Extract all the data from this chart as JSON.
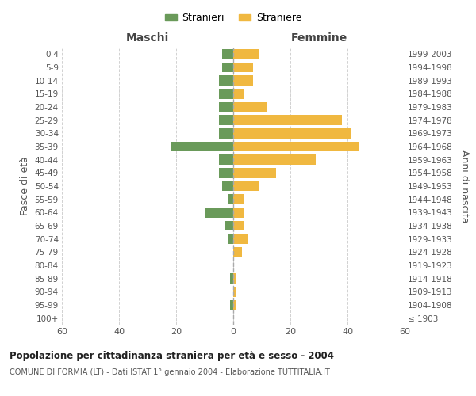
{
  "age_groups": [
    "100+",
    "95-99",
    "90-94",
    "85-89",
    "80-84",
    "75-79",
    "70-74",
    "65-69",
    "60-64",
    "55-59",
    "50-54",
    "45-49",
    "40-44",
    "35-39",
    "30-34",
    "25-29",
    "20-24",
    "15-19",
    "10-14",
    "5-9",
    "0-4"
  ],
  "birth_years": [
    "≤ 1903",
    "1904-1908",
    "1909-1913",
    "1914-1918",
    "1919-1923",
    "1924-1928",
    "1929-1933",
    "1934-1938",
    "1939-1943",
    "1944-1948",
    "1949-1953",
    "1954-1958",
    "1959-1963",
    "1964-1968",
    "1969-1973",
    "1974-1978",
    "1979-1983",
    "1984-1988",
    "1989-1993",
    "1994-1998",
    "1999-2003"
  ],
  "maschi": [
    0,
    1,
    0,
    1,
    0,
    0,
    2,
    3,
    10,
    2,
    4,
    5,
    5,
    22,
    5,
    5,
    5,
    5,
    5,
    4,
    4
  ],
  "femmine": [
    0,
    1,
    1,
    1,
    0,
    3,
    5,
    4,
    4,
    4,
    9,
    15,
    29,
    44,
    41,
    38,
    12,
    4,
    7,
    7,
    9
  ],
  "color_maschi": "#6a9a5a",
  "color_femmine": "#f0b840",
  "xlim": 60,
  "title": "Popolazione per cittadinanza straniera per età e sesso - 2004",
  "subtitle": "COMUNE DI FORMIA (LT) - Dati ISTAT 1° gennaio 2004 - Elaborazione TUTTITALIA.IT",
  "label_maschi": "Maschi",
  "label_femmine": "Femmine",
  "legend_stranieri": "Stranieri",
  "legend_straniere": "Straniere",
  "ylabel_left": "Fasce di età",
  "ylabel_right": "Anni di nascita",
  "background_color": "#ffffff",
  "grid_color": "#cccccc"
}
